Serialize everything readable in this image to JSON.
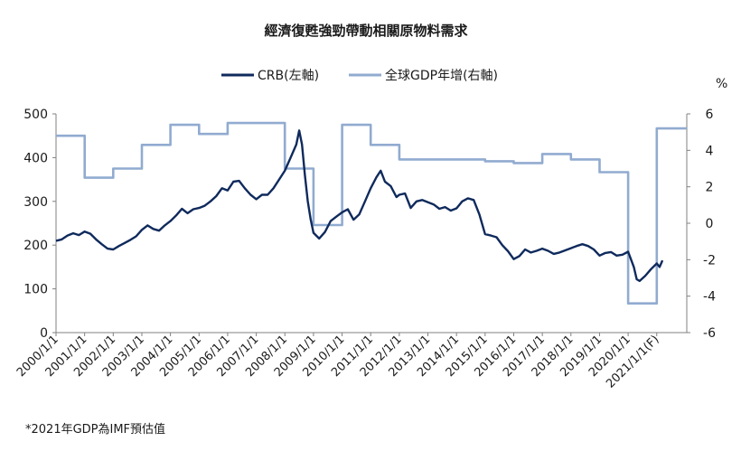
{
  "chart_data": {
    "type": "line",
    "title": "經濟復甦強勁帶動相關原物料需求",
    "footnote": "*2021年GDP為IMF預估值",
    "right_unit": "%",
    "legend": {
      "position": "top"
    },
    "grid": false,
    "x_ticks": [
      "2000/1/1",
      "2001/1/1",
      "2002/1/1",
      "2003/1/1",
      "2004/1/1",
      "2005/1/1",
      "2006/1/1",
      "2007/1/1",
      "2008/1/1",
      "2009/1/1",
      "2010/1/1",
      "2011/1/1",
      "2012/1/1",
      "2013/1/1",
      "2014/1/1",
      "2015/1/1",
      "2016/1/1",
      "2017/1/1",
      "2018/1/1",
      "2019/1/1",
      "2020/1/1",
      "2021/1/1(F)"
    ],
    "x_range": [
      2000,
      2022.05
    ],
    "y_left": {
      "range": [
        0,
        500
      ],
      "ticks": [
        0,
        100,
        200,
        300,
        400,
        500
      ]
    },
    "y_right": {
      "range": [
        -6,
        6
      ],
      "ticks": [
        -6,
        -4,
        -2,
        0,
        2,
        4,
        6
      ]
    },
    "series": [
      {
        "name": "CRB(左軸)",
        "axis": "left",
        "color": "#0f2a5c",
        "points": [
          [
            2000.0,
            210
          ],
          [
            2000.2,
            213
          ],
          [
            2000.4,
            222
          ],
          [
            2000.6,
            227
          ],
          [
            2000.8,
            223
          ],
          [
            2001.0,
            231
          ],
          [
            2001.2,
            226
          ],
          [
            2001.4,
            213
          ],
          [
            2001.6,
            202
          ],
          [
            2001.8,
            192
          ],
          [
            2002.0,
            190
          ],
          [
            2002.2,
            198
          ],
          [
            2002.4,
            205
          ],
          [
            2002.6,
            212
          ],
          [
            2002.8,
            220
          ],
          [
            2003.0,
            235
          ],
          [
            2003.2,
            245
          ],
          [
            2003.4,
            237
          ],
          [
            2003.6,
            233
          ],
          [
            2003.8,
            245
          ],
          [
            2004.0,
            255
          ],
          [
            2004.2,
            268
          ],
          [
            2004.4,
            283
          ],
          [
            2004.6,
            273
          ],
          [
            2004.8,
            282
          ],
          [
            2005.0,
            285
          ],
          [
            2005.2,
            290
          ],
          [
            2005.4,
            300
          ],
          [
            2005.6,
            312
          ],
          [
            2005.8,
            330
          ],
          [
            2006.0,
            325
          ],
          [
            2006.2,
            345
          ],
          [
            2006.4,
            347
          ],
          [
            2006.6,
            330
          ],
          [
            2006.8,
            315
          ],
          [
            2007.0,
            305
          ],
          [
            2007.2,
            315
          ],
          [
            2007.4,
            315
          ],
          [
            2007.6,
            330
          ],
          [
            2007.8,
            350
          ],
          [
            2008.0,
            370
          ],
          [
            2008.2,
            400
          ],
          [
            2008.4,
            430
          ],
          [
            2008.5,
            462
          ],
          [
            2008.6,
            430
          ],
          [
            2008.7,
            360
          ],
          [
            2008.8,
            300
          ],
          [
            2008.9,
            260
          ],
          [
            2009.0,
            228
          ],
          [
            2009.2,
            215
          ],
          [
            2009.4,
            230
          ],
          [
            2009.6,
            255
          ],
          [
            2009.8,
            265
          ],
          [
            2010.0,
            275
          ],
          [
            2010.2,
            282
          ],
          [
            2010.4,
            258
          ],
          [
            2010.6,
            270
          ],
          [
            2010.8,
            300
          ],
          [
            2011.0,
            330
          ],
          [
            2011.2,
            355
          ],
          [
            2011.35,
            370
          ],
          [
            2011.5,
            345
          ],
          [
            2011.7,
            335
          ],
          [
            2011.9,
            310
          ],
          [
            2012.0,
            315
          ],
          [
            2012.2,
            318
          ],
          [
            2012.4,
            285
          ],
          [
            2012.6,
            300
          ],
          [
            2012.8,
            303
          ],
          [
            2013.0,
            298
          ],
          [
            2013.2,
            293
          ],
          [
            2013.4,
            283
          ],
          [
            2013.6,
            287
          ],
          [
            2013.8,
            279
          ],
          [
            2014.0,
            284
          ],
          [
            2014.2,
            300
          ],
          [
            2014.4,
            307
          ],
          [
            2014.6,
            303
          ],
          [
            2014.8,
            270
          ],
          [
            2015.0,
            225
          ],
          [
            2015.2,
            222
          ],
          [
            2015.4,
            218
          ],
          [
            2015.6,
            200
          ],
          [
            2015.8,
            186
          ],
          [
            2016.0,
            168
          ],
          [
            2016.2,
            175
          ],
          [
            2016.4,
            190
          ],
          [
            2016.6,
            183
          ],
          [
            2016.8,
            187
          ],
          [
            2017.0,
            192
          ],
          [
            2017.2,
            187
          ],
          [
            2017.4,
            180
          ],
          [
            2017.6,
            183
          ],
          [
            2017.8,
            188
          ],
          [
            2018.0,
            193
          ],
          [
            2018.2,
            198
          ],
          [
            2018.4,
            202
          ],
          [
            2018.6,
            198
          ],
          [
            2018.8,
            190
          ],
          [
            2019.0,
            176
          ],
          [
            2019.2,
            182
          ],
          [
            2019.4,
            184
          ],
          [
            2019.6,
            176
          ],
          [
            2019.8,
            178
          ],
          [
            2020.0,
            185
          ],
          [
            2020.2,
            150
          ],
          [
            2020.3,
            122
          ],
          [
            2020.4,
            118
          ],
          [
            2020.6,
            130
          ],
          [
            2020.8,
            145
          ],
          [
            2021.0,
            158
          ],
          [
            2021.1,
            150
          ],
          [
            2021.2,
            165
          ]
        ]
      },
      {
        "name": "全球GDP年增(右軸)",
        "axis": "right",
        "color": "#91abd0",
        "points": [
          [
            2000.0,
            4.8
          ],
          [
            2001.0,
            4.8
          ],
          [
            2001.0,
            2.5
          ],
          [
            2002.0,
            2.5
          ],
          [
            2002.0,
            3.0
          ],
          [
            2003.0,
            3.0
          ],
          [
            2003.0,
            4.3
          ],
          [
            2004.0,
            4.3
          ],
          [
            2004.0,
            5.4
          ],
          [
            2005.0,
            5.4
          ],
          [
            2005.0,
            4.9
          ],
          [
            2006.0,
            4.9
          ],
          [
            2006.0,
            5.5
          ],
          [
            2008.0,
            5.5
          ],
          [
            2008.0,
            3.0
          ],
          [
            2009.0,
            3.0
          ],
          [
            2009.0,
            -0.1
          ],
          [
            2010.0,
            -0.1
          ],
          [
            2010.0,
            5.4
          ],
          [
            2011.0,
            5.4
          ],
          [
            2011.0,
            4.3
          ],
          [
            2012.0,
            4.3
          ],
          [
            2012.0,
            3.5
          ],
          [
            2015.0,
            3.5
          ],
          [
            2015.0,
            3.4
          ],
          [
            2016.0,
            3.4
          ],
          [
            2016.0,
            3.3
          ],
          [
            2017.0,
            3.3
          ],
          [
            2017.0,
            3.8
          ],
          [
            2018.0,
            3.8
          ],
          [
            2018.0,
            3.5
          ],
          [
            2019.0,
            3.5
          ],
          [
            2019.0,
            2.8
          ],
          [
            2020.0,
            2.8
          ],
          [
            2020.0,
            -4.4
          ],
          [
            2021.0,
            -4.4
          ],
          [
            2021.0,
            5.2
          ],
          [
            2022.05,
            5.2
          ]
        ]
      }
    ]
  }
}
